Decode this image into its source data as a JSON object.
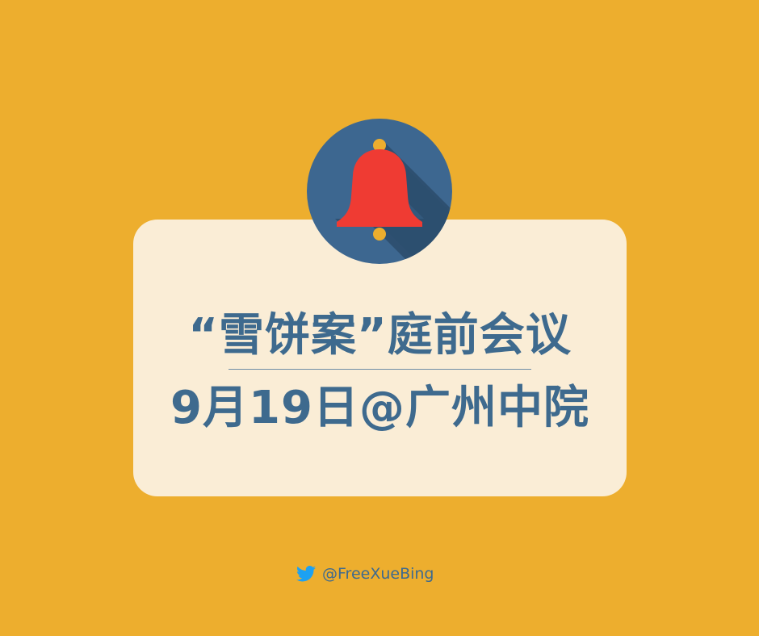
{
  "headline": {
    "line1": "“雪饼案”庭前会议",
    "line2": "9月19日@广州中院"
  },
  "footer": {
    "handle": "@FreeXueBing"
  },
  "icons": {
    "badge": "bell-icon",
    "social": "twitter-bird-icon"
  },
  "colors": {
    "background": "#EDAE2E",
    "card": "#FAEDD6",
    "text": "#3E6A8E",
    "badge_circle": "#3D6790",
    "bell": "#EF3B33",
    "bell_knobs": "#EDAE2E",
    "twitter": "#1DA1F2"
  }
}
